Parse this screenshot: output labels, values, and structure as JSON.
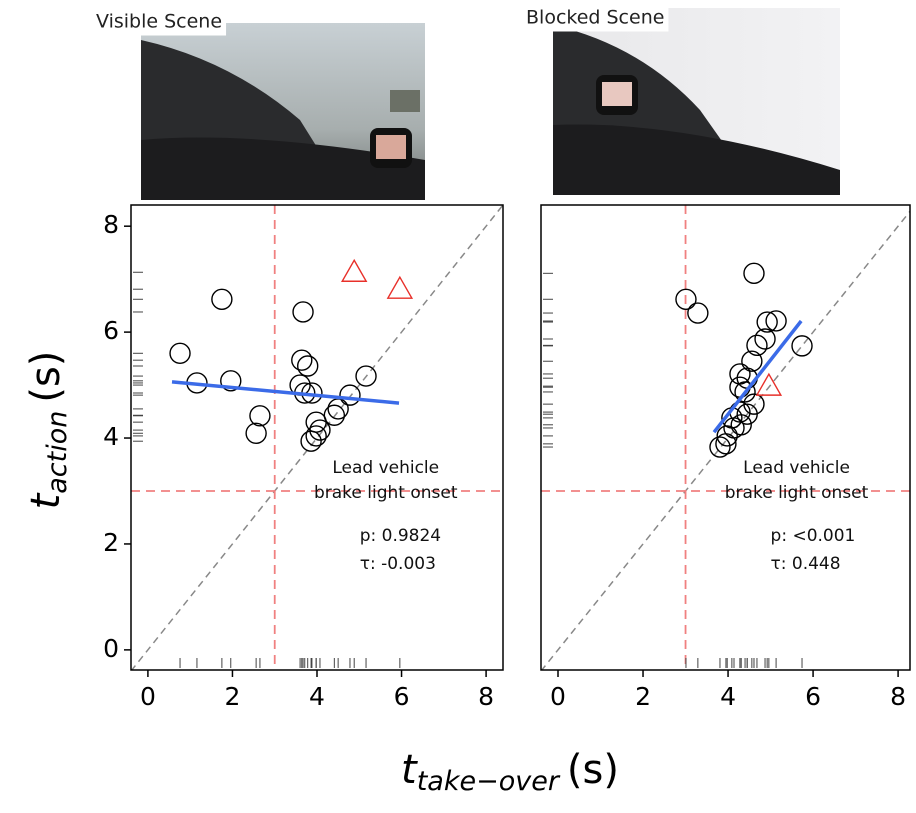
{
  "xlabel": {
    "main": "t",
    "sub": "take−over",
    "unit": "(s)"
  },
  "ylabel": {
    "main": "t",
    "sub": "action",
    "unit": "(s)"
  },
  "chart_data": [
    {
      "type": "scatter",
      "title": "Visible Scene",
      "xlim": [
        -0.4,
        8.4
      ],
      "ylim": [
        -0.38,
        8.4
      ],
      "xticks": [
        0,
        2,
        4,
        6,
        8
      ],
      "yticks": [
        0,
        2,
        4,
        6,
        8
      ],
      "vline": 3,
      "hline": 3,
      "ref_color": "#f08080",
      "diagonal": true,
      "annotation": [
        "Lead vehicle",
        "brake light onset",
        "p: 0.9824",
        "τ:  -0.003"
      ],
      "series": [
        {
          "marker": "circle",
          "color": "#000000",
          "x": [
            0.76,
            1.16,
            1.75,
            1.96,
            2.65,
            2.56,
            3.67,
            3.64,
            3.78,
            3.6,
            3.71,
            3.88,
            3.86,
            3.98,
            4.07,
            3.98,
            4.41,
            4.5,
            4.78,
            5.16
          ],
          "y": [
            5.6,
            5.04,
            6.62,
            5.08,
            4.42,
            4.09,
            6.38,
            5.47,
            5.36,
            5.0,
            4.85,
            4.85,
            3.94,
            4.04,
            4.15,
            4.3,
            4.43,
            4.55,
            4.81,
            5.17
          ]
        },
        {
          "marker": "triangle",
          "color": "#e8302a",
          "x": [
            4.88,
            5.96
          ],
          "y": [
            7.13,
            6.81
          ]
        }
      ],
      "trend": {
        "color": "#3b6be8",
        "x": [
          0.57,
          5.94
        ],
        "y": [
          5.06,
          4.66
        ]
      }
    },
    {
      "type": "scatter",
      "title": "Blocked Scene",
      "xlim": [
        -0.4,
        8.28
      ],
      "ylim": [
        -0.38,
        8.4
      ],
      "xticks": [
        0,
        2,
        4,
        6,
        8
      ],
      "vline": 3,
      "hline": 3,
      "ref_color": "#f08080",
      "diagonal": true,
      "annotation": [
        "Lead vehicle",
        "brake light onset",
        "p: <0.001",
        "τ:  0.448"
      ],
      "series": [
        {
          "marker": "circle",
          "color": "#000000",
          "x": [
            3.01,
            3.29,
            4.61,
            4.92,
            5.13,
            4.87,
            4.68,
            4.56,
            4.28,
            4.45,
            4.28,
            4.4,
            5.74,
            4.61,
            4.28,
            4.09,
            4.14,
            4.31,
            3.98,
            3.95,
            3.81,
            4.45
          ],
          "y": [
            6.62,
            6.36,
            7.11,
            6.19,
            6.21,
            5.87,
            5.75,
            5.45,
            5.21,
            5.13,
            4.96,
            4.87,
            5.74,
            4.64,
            4.49,
            4.38,
            4.19,
            4.25,
            4.04,
            3.89,
            3.83,
            4.45
          ]
        },
        {
          "marker": "triangle",
          "color": "#e8302a",
          "x": [
            4.96
          ],
          "y": [
            4.98
          ]
        }
      ],
      "trend": {
        "color": "#3b6be8",
        "x": [
          3.67,
          5.72
        ],
        "y": [
          4.11,
          6.21
        ]
      }
    }
  ]
}
